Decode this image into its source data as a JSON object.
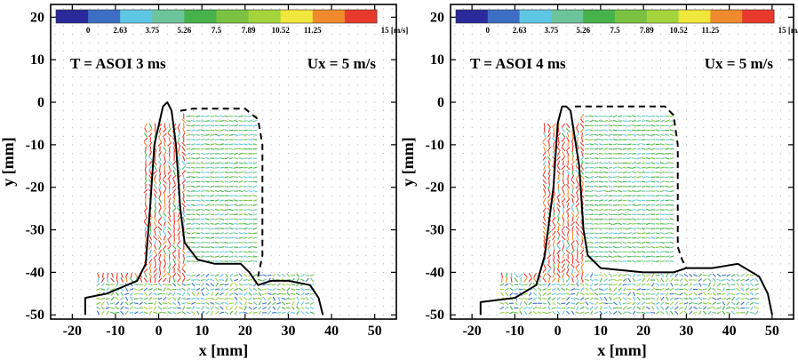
{
  "chart_data": [
    {
      "type": "vector-field",
      "annotation_time": "T = ASOI 3 ms",
      "annotation_velocity": "Ux = 5 m/s",
      "xlabel": "x [mm]",
      "ylabel": "y [mm]",
      "xlim": [
        -25,
        55
      ],
      "ylim": [
        -51,
        23
      ],
      "xticks": [
        -20,
        -10,
        0,
        10,
        20,
        30,
        40,
        50
      ],
      "yticks": [
        20,
        10,
        0,
        -10,
        -20,
        -30,
        -40,
        -50
      ],
      "colorbar": {
        "labels": [
          "0",
          "2.63",
          "3.75",
          "5.26",
          "7.5",
          "7.89",
          "10.52",
          "11.25",
          "15 [m/s]"
        ],
        "colors": [
          "#2a2a9c",
          "#3d6ec4",
          "#5ec8e4",
          "#6cc49a",
          "#46b34a",
          "#7cc242",
          "#a4d43c",
          "#f0e63c",
          "#f08a2c",
          "#e83a2c"
        ]
      },
      "outline_solid": [
        [
          -17,
          -50
        ],
        [
          -17,
          -46
        ],
        [
          -12,
          -45
        ],
        [
          -5,
          -42
        ],
        [
          -3,
          -38
        ],
        [
          -2,
          -25
        ],
        [
          -1,
          -10
        ],
        [
          1,
          -1
        ],
        [
          2,
          0
        ],
        [
          3,
          -2
        ],
        [
          4,
          -10
        ],
        [
          5,
          -25
        ],
        [
          6,
          -33
        ],
        [
          9,
          -37
        ],
        [
          13,
          -38
        ],
        [
          19,
          -38
        ],
        [
          21,
          -40
        ],
        [
          23,
          -43
        ],
        [
          26,
          -42
        ],
        [
          30,
          -42
        ],
        [
          35,
          -43
        ],
        [
          37,
          -46
        ],
        [
          38,
          -50
        ]
      ],
      "outline_dashed": [
        [
          5,
          -2
        ],
        [
          8,
          -1.5
        ],
        [
          20,
          -1.5
        ],
        [
          23,
          -4
        ],
        [
          24,
          -10
        ],
        [
          24,
          -25
        ],
        [
          24,
          -32
        ],
        [
          24,
          -36
        ],
        [
          23,
          -41
        ]
      ],
      "region": {
        "upper_x": [
          5,
          23
        ],
        "upper_y": [
          -38,
          -3
        ],
        "lower_x": [
          -14,
          36
        ],
        "lower_y": [
          -49.5,
          -40
        ]
      }
    },
    {
      "type": "vector-field",
      "annotation_time": "T = ASOI 4 ms",
      "annotation_velocity": "Ux = 5 m/s",
      "xlabel": "x [mm]",
      "ylabel": "y [mm]",
      "xlim": [
        -25,
        55
      ],
      "ylim": [
        -51,
        23
      ],
      "xticks": [
        -20,
        -10,
        0,
        10,
        20,
        30,
        40,
        50
      ],
      "yticks": [
        20,
        10,
        0,
        -10,
        -20,
        -30,
        -40,
        -50
      ],
      "colorbar": {
        "labels": [
          "0",
          "2.63",
          "3.75",
          "5.26",
          "7.5",
          "7.89",
          "10.52",
          "11.25",
          "15 [m/s]"
        ],
        "colors": [
          "#2a2a9c",
          "#3d6ec4",
          "#5ec8e4",
          "#6cc49a",
          "#46b34a",
          "#7cc242",
          "#a4d43c",
          "#f0e63c",
          "#f08a2c",
          "#e83a2c"
        ]
      },
      "outline_solid": [
        [
          -18,
          -50
        ],
        [
          -18,
          -47
        ],
        [
          -10,
          -46
        ],
        [
          -5,
          -43
        ],
        [
          -3,
          -36
        ],
        [
          -1,
          -20
        ],
        [
          0,
          -5
        ],
        [
          1,
          -1
        ],
        [
          2,
          -1
        ],
        [
          3,
          -2
        ],
        [
          5,
          -15
        ],
        [
          6,
          -30
        ],
        [
          7,
          -36
        ],
        [
          10,
          -39
        ],
        [
          20,
          -40
        ],
        [
          27,
          -40
        ],
        [
          30,
          -39
        ],
        [
          36,
          -39
        ],
        [
          42,
          -38
        ],
        [
          47,
          -41
        ],
        [
          49,
          -45
        ],
        [
          50,
          -50
        ]
      ],
      "outline_dashed": [
        [
          4,
          -1
        ],
        [
          10,
          -1
        ],
        [
          25,
          -1
        ],
        [
          27,
          -3
        ],
        [
          28,
          -10
        ],
        [
          28,
          -25
        ],
        [
          28,
          -34
        ],
        [
          29,
          -37
        ],
        [
          30,
          -39
        ]
      ],
      "region": {
        "upper_x": [
          5,
          27
        ],
        "upper_y": [
          -38,
          -3
        ],
        "lower_x": [
          -13,
          47
        ],
        "lower_y": [
          -49.5,
          -40
        ]
      }
    }
  ]
}
